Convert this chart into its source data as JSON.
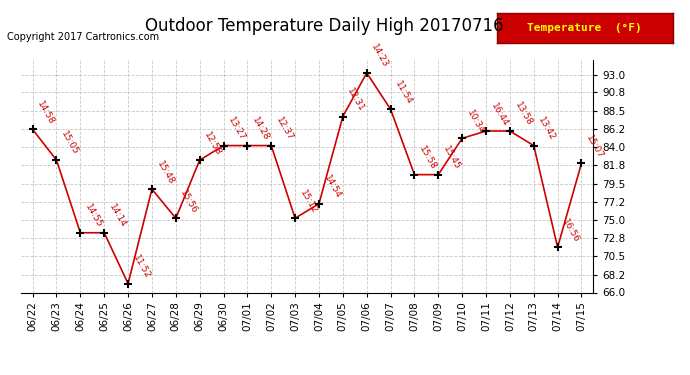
{
  "title": "Outdoor Temperature Daily High 20170716",
  "copyright": "Copyright 2017 Cartronics.com",
  "legend_label": "Temperature  (°F)",
  "dates": [
    "06/22",
    "06/23",
    "06/24",
    "06/25",
    "06/26",
    "06/27",
    "06/28",
    "06/29",
    "06/30",
    "07/01",
    "07/02",
    "07/03",
    "07/04",
    "07/05",
    "07/06",
    "07/07",
    "07/08",
    "07/09",
    "07/10",
    "07/11",
    "07/12",
    "07/13",
    "07/14",
    "07/15"
  ],
  "values": [
    86.2,
    82.4,
    73.4,
    73.4,
    67.1,
    78.8,
    75.2,
    82.4,
    84.2,
    84.2,
    84.2,
    75.2,
    77.0,
    87.8,
    93.2,
    88.7,
    80.6,
    80.6,
    85.1,
    86.0,
    86.0,
    84.2,
    71.6,
    82.0
  ],
  "times": [
    "14:58",
    "15:05",
    "14:55",
    "14:14",
    "11:52",
    "15:48",
    "15:56",
    "12:58",
    "13:27",
    "14:28",
    "12:37",
    "15:12",
    "14:54",
    "12:31",
    "14:23",
    "11:54",
    "15:58",
    "15:45",
    "10:34",
    "16:44",
    "13:58",
    "13:42",
    "16:56",
    "15:07"
  ],
  "line_color": "#cc0000",
  "marker_color": "#000000",
  "bg_color": "#ffffff",
  "grid_color": "#c8c8c8",
  "ylim": [
    66.0,
    94.8
  ],
  "yticks": [
    66.0,
    68.2,
    70.5,
    72.8,
    75.0,
    77.2,
    79.5,
    81.8,
    84.0,
    86.2,
    88.5,
    90.8,
    93.0
  ],
  "title_fontsize": 12,
  "copyright_fontsize": 7,
  "annot_fontsize": 6.5,
  "tick_fontsize": 7.5
}
